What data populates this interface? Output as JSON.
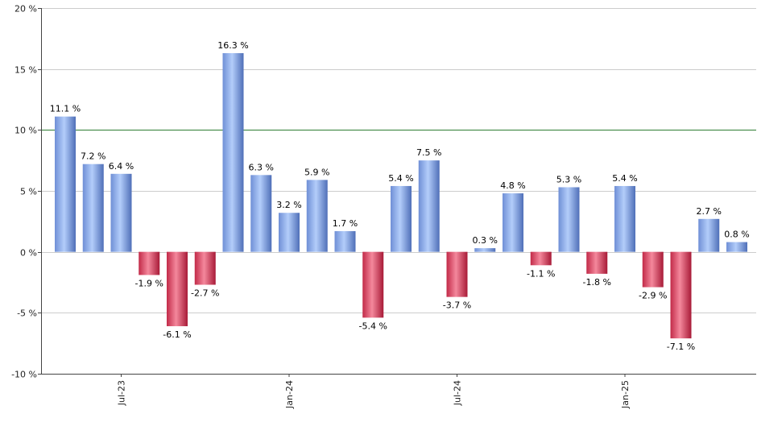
{
  "chart_data": {
    "type": "bar",
    "title": "",
    "xlabel": "",
    "ylabel": "",
    "ylim": [
      -10,
      20
    ],
    "y_ticks": [
      -10,
      -5,
      0,
      5,
      10,
      15,
      20
    ],
    "y_tick_labels": [
      "-10 %",
      "-5 %",
      "0 %",
      "5 %",
      "10 %",
      "15 %",
      "20 %"
    ],
    "reference_line": 10,
    "grid": true,
    "values": [
      11.1,
      7.2,
      6.4,
      -1.9,
      -6.1,
      -2.7,
      16.3,
      6.3,
      3.2,
      5.9,
      1.7,
      -5.4,
      5.4,
      7.5,
      -3.7,
      0.3,
      4.8,
      -1.1,
      5.3,
      -1.8,
      5.4,
      -2.9,
      -7.1,
      2.7,
      0.8
    ],
    "value_labels": [
      "11.1 %",
      "7.2 %",
      "6.4 %",
      "-1.9 %",
      "-6.1 %",
      "-2.7 %",
      "16.3 %",
      "6.3 %",
      "3.2 %",
      "5.9 %",
      "1.7 %",
      "-5.4 %",
      "5.4 %",
      "7.5 %",
      "-3.7 %",
      "0.3 %",
      "4.8 %",
      "-1.1 %",
      "5.3 %",
      "-1.8 %",
      "5.4 %",
      "-2.9 %",
      "-7.1 %",
      "2.7 %",
      "0.8 %"
    ],
    "x_tick_labels": [
      {
        "label": "Jul-23",
        "bar_index": 2
      },
      {
        "label": "Jan-24",
        "bar_index": 8
      },
      {
        "label": "Jul-24",
        "bar_index": 14
      },
      {
        "label": "Jan-25",
        "bar_index": 20
      }
    ],
    "colors": {
      "positive_dark": "#5a7bc4",
      "positive_light": "#a9c4f5",
      "negative_dark": "#b3203f",
      "negative_light": "#f07088",
      "reference_line": "#2e7d32",
      "grid": "#cccccc",
      "axis": "#444444"
    }
  }
}
